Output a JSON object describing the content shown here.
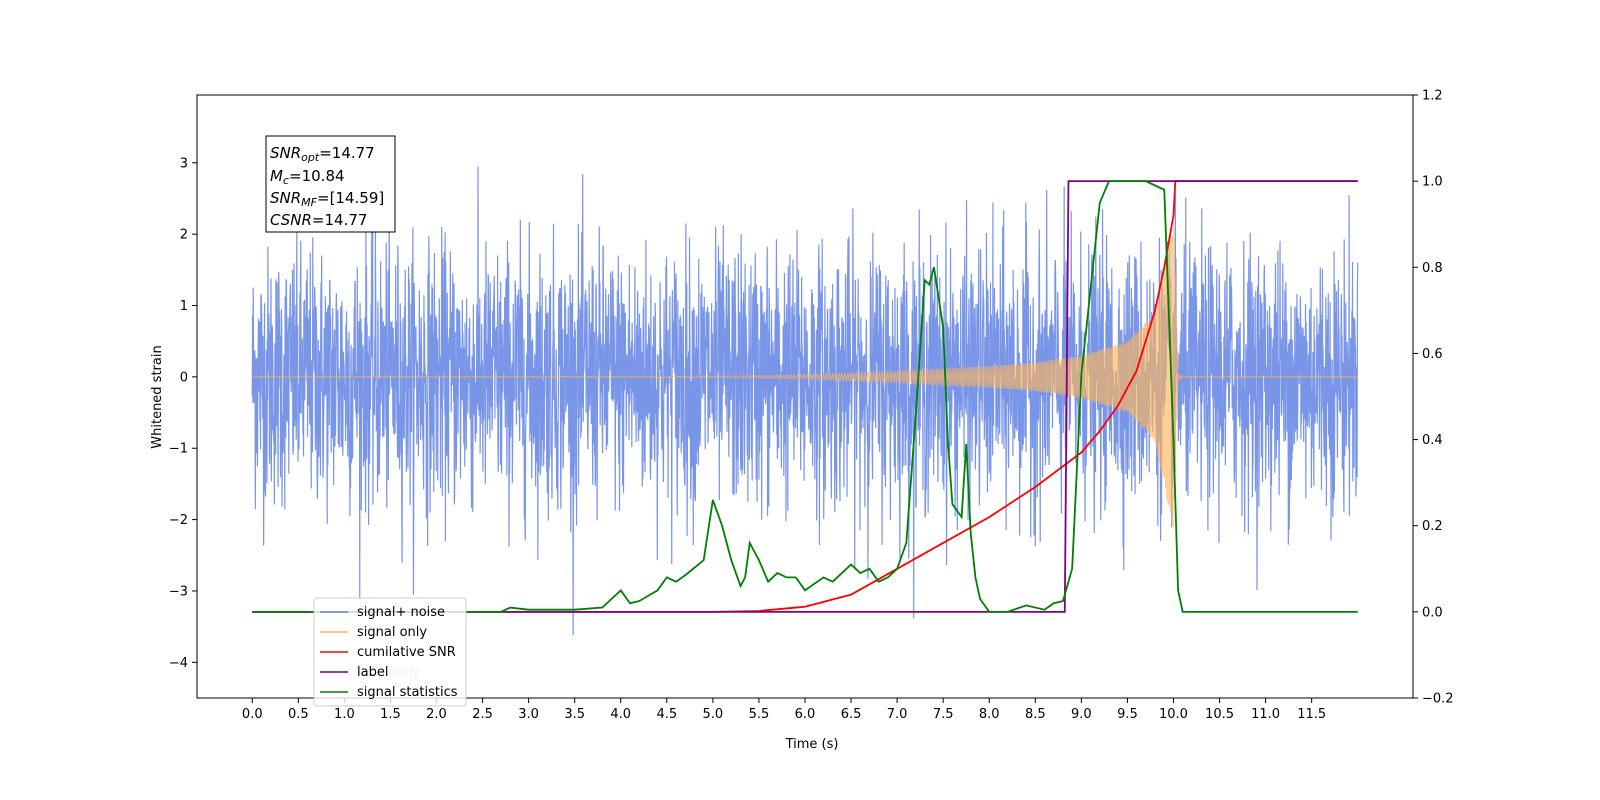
{
  "chart_data": {
    "type": "line",
    "xlabel": "Time (s)",
    "ylabel": "Whitened strain",
    "xlim": [
      -0.6,
      12.6
    ],
    "ylim_left": [
      -4.5,
      3.95
    ],
    "ylim_right": [
      -0.2,
      1.2
    ],
    "x_ticks": [
      0.0,
      0.5,
      1.0,
      1.5,
      2.0,
      2.5,
      3.0,
      3.5,
      4.0,
      4.5,
      5.0,
      5.5,
      6.0,
      6.5,
      7.0,
      7.5,
      8.0,
      8.5,
      9.0,
      9.5,
      10.0,
      10.5,
      11.0,
      11.5
    ],
    "x_tick_labels": [
      "0.0",
      "0.5",
      "1.0",
      "1.5",
      "2.0",
      "2.5",
      "3.0",
      "3.5",
      "4.0",
      "4.5",
      "5.0",
      "5.5",
      "6.0",
      "6.5",
      "7.0",
      "7.5",
      "8.0",
      "8.5",
      "9.0",
      "9.5",
      "10.0",
      "10.5",
      "11.0",
      "11.5"
    ],
    "y_ticks_left": [
      3,
      2,
      1,
      0,
      -1,
      -2,
      -3,
      -4
    ],
    "y_tick_labels_left": [
      "3",
      "2",
      "1",
      "0",
      "−1",
      "−2",
      "−3",
      "−4"
    ],
    "y_ticks_right": [
      1.2,
      1.0,
      0.8,
      0.6,
      0.4,
      0.2,
      0.0,
      -0.2
    ],
    "y_tick_labels_right": [
      "1.2",
      "1.0",
      "0.8",
      "0.6",
      "0.4",
      "0.2",
      "0.0",
      "−0.2"
    ],
    "grid": false,
    "legend_position": "lower-left",
    "annotation": {
      "snr_opt": {
        "base": "SNR",
        "sub": "opt",
        "value": "=14.77"
      },
      "mc": {
        "base": "M",
        "sub": "c",
        "value": "=10.84"
      },
      "snr_mf": {
        "base": "SNR",
        "sub": "MF",
        "value": "=[14.59]"
      },
      "csnr": {
        "base": "CSNR",
        "value": "=14.77"
      }
    },
    "series": [
      {
        "name": "signal+ noise",
        "axis": "left",
        "color": "#6a89e4",
        "kind": "noise",
        "x_range": [
          0.0,
          12.0
        ],
        "mean": 0.0,
        "std": 0.9
      },
      {
        "name": "signal only",
        "axis": "left",
        "color": "#ffb55a",
        "kind": "chirp",
        "envelope": [
          [
            0.0,
            0.0
          ],
          [
            5.0,
            0.01
          ],
          [
            6.0,
            0.03
          ],
          [
            7.0,
            0.08
          ],
          [
            8.0,
            0.15
          ],
          [
            8.5,
            0.2
          ],
          [
            9.0,
            0.3
          ],
          [
            9.5,
            0.5
          ],
          [
            9.8,
            0.9
          ],
          [
            10.0,
            2.2
          ],
          [
            10.05,
            0.05
          ],
          [
            10.1,
            0.0
          ],
          [
            12.0,
            0.0
          ]
        ]
      },
      {
        "name": "cumilative SNR",
        "axis": "right",
        "color": "#ff0000",
        "kind": "line",
        "x": [
          0.0,
          5.0,
          5.5,
          6.0,
          6.5,
          7.0,
          7.5,
          8.0,
          8.5,
          9.0,
          9.2,
          9.4,
          9.6,
          9.8,
          9.9,
          10.0,
          10.02,
          12.0
        ],
        "y": [
          0.0,
          0.0,
          0.002,
          0.012,
          0.04,
          0.1,
          0.16,
          0.22,
          0.29,
          0.37,
          0.42,
          0.48,
          0.56,
          0.7,
          0.8,
          0.92,
          1.0,
          1.0
        ]
      },
      {
        "name": "label",
        "axis": "right",
        "color": "#800080",
        "kind": "line",
        "x": [
          0.0,
          8.82,
          8.86,
          10.03,
          10.03,
          12.0
        ],
        "y": [
          0.0,
          0.0,
          1.0,
          1.0,
          1.0,
          1.0
        ]
      },
      {
        "name": "label only",
        "axis": "right",
        "color": "#800080",
        "kind": "line",
        "x": [],
        "y": []
      },
      {
        "name": "signal statistics",
        "axis": "right",
        "color": "#008000",
        "kind": "line",
        "x": [
          0.0,
          2.7,
          2.8,
          3.0,
          3.5,
          3.8,
          4.0,
          4.1,
          4.2,
          4.4,
          4.5,
          4.6,
          4.7,
          4.9,
          5.0,
          5.1,
          5.2,
          5.3,
          5.35,
          5.4,
          5.5,
          5.6,
          5.7,
          5.8,
          5.9,
          6.0,
          6.2,
          6.3,
          6.4,
          6.5,
          6.6,
          6.7,
          6.8,
          6.9,
          7.0,
          7.1,
          7.2,
          7.3,
          7.35,
          7.4,
          7.5,
          7.55,
          7.6,
          7.7,
          7.75,
          7.8,
          7.85,
          7.9,
          8.0,
          8.2,
          8.4,
          8.6,
          8.7,
          8.8,
          8.9,
          9.0,
          9.1,
          9.2,
          9.3,
          9.4,
          9.5,
          9.7,
          9.9,
          10.0,
          10.05,
          10.1,
          12.0
        ],
        "y": [
          0.0,
          0.0,
          0.01,
          0.005,
          0.005,
          0.01,
          0.05,
          0.02,
          0.025,
          0.05,
          0.08,
          0.07,
          0.085,
          0.12,
          0.26,
          0.2,
          0.12,
          0.06,
          0.08,
          0.16,
          0.12,
          0.07,
          0.09,
          0.08,
          0.08,
          0.05,
          0.08,
          0.07,
          0.09,
          0.11,
          0.09,
          0.1,
          0.07,
          0.08,
          0.1,
          0.16,
          0.45,
          0.77,
          0.76,
          0.8,
          0.66,
          0.4,
          0.25,
          0.22,
          0.39,
          0.18,
          0.08,
          0.03,
          0.0,
          0.0,
          0.015,
          0.005,
          0.02,
          0.025,
          0.1,
          0.55,
          0.75,
          0.95,
          1.0,
          1.0,
          1.0,
          1.0,
          0.98,
          0.4,
          0.05,
          0.0,
          0.0
        ]
      }
    ]
  }
}
